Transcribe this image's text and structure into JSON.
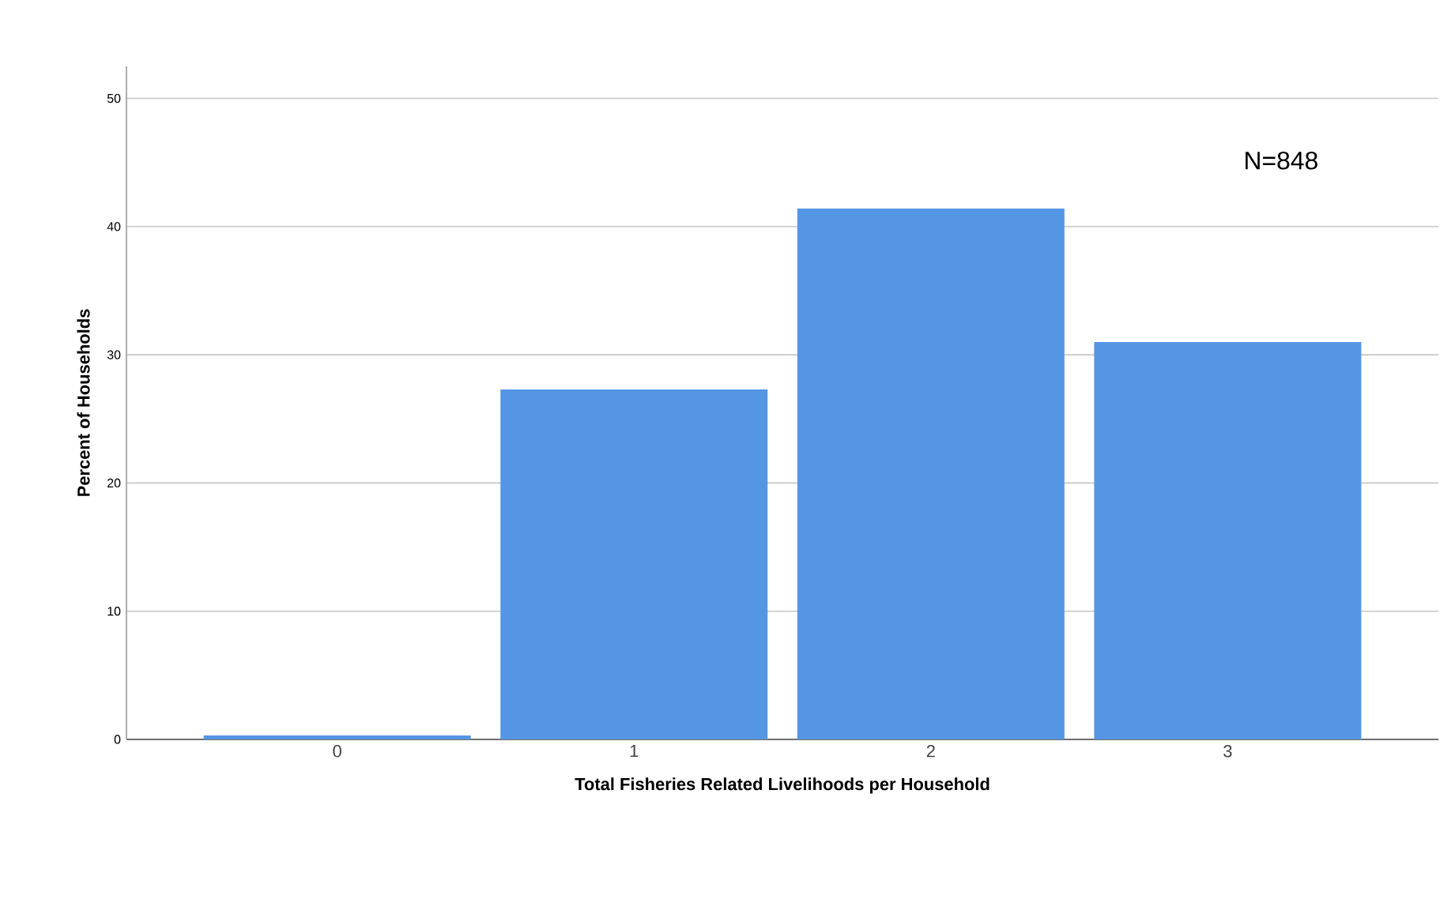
{
  "chart_data": {
    "type": "bar",
    "xlabel": "Total Fisheries Related Livelihoods per Household",
    "ylabel": "Percent of Households",
    "categories": [
      "0",
      "1",
      "2",
      "3"
    ],
    "values": [
      0.3,
      27.3,
      41.4,
      31.0
    ],
    "color": "#5596e4",
    "ylim": [
      0,
      52.5
    ],
    "yticks": [
      0,
      10,
      20,
      30,
      40,
      50
    ],
    "grid": "y",
    "annotations": [
      "N=848"
    ]
  }
}
